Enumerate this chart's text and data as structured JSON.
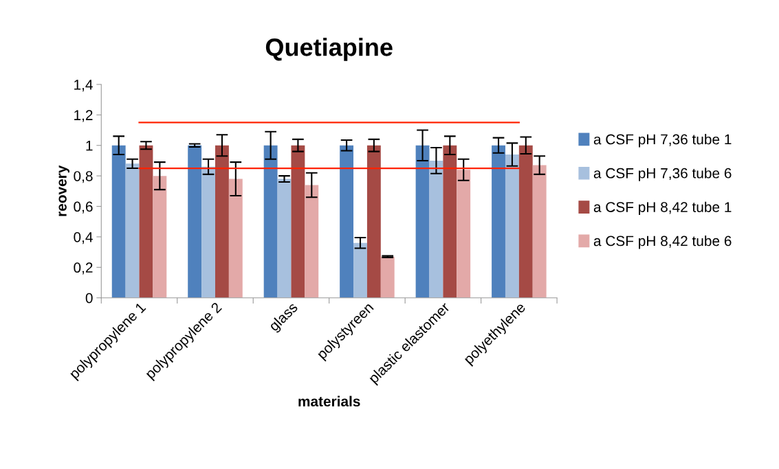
{
  "chart_data": {
    "type": "bar",
    "title": "Quetiapine",
    "xlabel": "materials",
    "ylabel": "reovery",
    "categories": [
      "polypropylene 1",
      "polypropylene 2",
      "glass",
      "polystyreen",
      "plastic elastomer",
      "polyethylene"
    ],
    "series": [
      {
        "name": "a CSF pH 7,36 tube 1",
        "color": "#4f81bd",
        "values": [
          1,
          1,
          1,
          1,
          1,
          1
        ],
        "errors": [
          0.06,
          0.01,
          0.09,
          0.035,
          0.1,
          0.05
        ]
      },
      {
        "name": "a CSF pH 7,36 tube 6",
        "color": "#a7c0de",
        "values": [
          0.88,
          0.86,
          0.78,
          0.36,
          0.9,
          0.94
        ],
        "errors": [
          0.03,
          0.05,
          0.02,
          0.035,
          0.085,
          0.075
        ]
      },
      {
        "name": "a CSF pH 8,42 tube 1",
        "color": "#a54a45",
        "values": [
          1,
          1,
          1,
          1,
          1,
          1
        ],
        "errors": [
          0.025,
          0.07,
          0.04,
          0.04,
          0.06,
          0.055
        ]
      },
      {
        "name": "a CSF pH 8,42 tube 6",
        "color": "#e3a9a8",
        "values": [
          0.8,
          0.78,
          0.74,
          0.27,
          0.84,
          0.87
        ],
        "errors": [
          0.09,
          0.11,
          0.08,
          0.005,
          0.07,
          0.06
        ]
      },
      {
        "type": "line",
        "color": "#ff2200",
        "values": [
          1.15,
          1.15,
          1.15,
          1.15,
          1.15,
          1.15
        ]
      },
      {
        "type": "line",
        "color": "#ff2200",
        "values": [
          0.85,
          0.85,
          0.85,
          0.85,
          0.85,
          0.85
        ]
      }
    ],
    "ylim": [
      0,
      1.4
    ],
    "yticks": [
      {
        "value": 0,
        "label": "0"
      },
      {
        "value": 0.2,
        "label": "0,2"
      },
      {
        "value": 0.4,
        "label": "0,4"
      },
      {
        "value": 0.6,
        "label": "0,6"
      },
      {
        "value": 0.8,
        "label": "0,8"
      },
      {
        "value": 1,
        "label": "1"
      },
      {
        "value": 1.2,
        "label": "1,2"
      },
      {
        "value": 1.4,
        "label": "1,4"
      }
    ],
    "legend": "right",
    "grid": false,
    "marker": "none"
  }
}
